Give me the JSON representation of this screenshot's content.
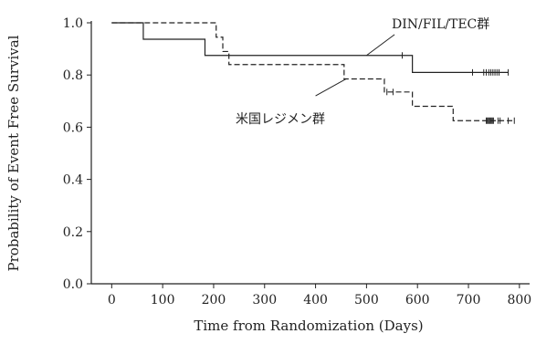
{
  "chart_data": {
    "type": "line",
    "title": "",
    "xlabel": "Time from Randomization (Days)",
    "ylabel": "Probability of Event Free Survival",
    "xlim": [
      -40,
      820
    ],
    "ylim": [
      0,
      1.0
    ],
    "x_ticks": [
      0,
      100,
      200,
      300,
      400,
      500,
      600,
      700,
      800
    ],
    "x_tick_labels": [
      "0",
      "100",
      "200",
      "300",
      "400",
      "500",
      "600",
      "700",
      "800"
    ],
    "y_ticks": [
      0,
      0.2,
      0.4,
      0.6,
      0.8,
      1.0
    ],
    "y_tick_labels": [
      "0.0",
      "0.2",
      "0.4",
      "0.6",
      "0.8",
      "1.0"
    ],
    "grid": false,
    "legend": "inline labels",
    "series": [
      {
        "name": "DIN/FIL/TEC群",
        "line_style": "solid",
        "color": "#222222",
        "steps": [
          [
            0,
            1.0
          ],
          [
            62,
            0.937
          ],
          [
            183,
            0.875
          ],
          [
            590,
            0.81
          ],
          [
            778,
            0.81
          ]
        ],
        "censor_x": [
          570,
          708,
          730,
          735,
          740,
          744,
          748,
          752,
          756,
          760,
          778
        ]
      },
      {
        "name": "米国レジメン群",
        "line_style": "dashed",
        "color": "#222222",
        "steps": [
          [
            0,
            1.0
          ],
          [
            205,
            0.945
          ],
          [
            218,
            0.89
          ],
          [
            230,
            0.84
          ],
          [
            456,
            0.785
          ],
          [
            535,
            0.735
          ],
          [
            590,
            0.68
          ],
          [
            670,
            0.625
          ],
          [
            790,
            0.625
          ]
        ],
        "censor_x": [
          540,
          552,
          735,
          737,
          739,
          741,
          743,
          745,
          747,
          749,
          758,
          762,
          778,
          790
        ]
      }
    ],
    "annotations": [
      {
        "text": "DIN/FIL/TEC群",
        "series": "DIN/FIL/TEC群"
      },
      {
        "text": "米国レジメン群",
        "series": "米国レジメン群"
      }
    ]
  }
}
